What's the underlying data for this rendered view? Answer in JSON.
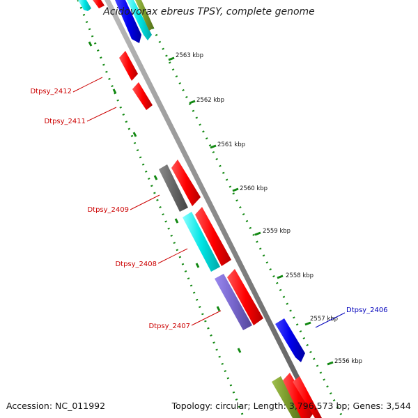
{
  "title": "Acidovorax ebreus TPSY, complete genome",
  "footer": {
    "accession": "Accession: NC_011992",
    "topology": "Topology: circular; Length: 3,796,573 bp; Genes: 3,544"
  },
  "colors": {
    "backbone": "#8c8c8c",
    "ticks": "#118811",
    "label_red": "#cc0000",
    "label_blue": "#0000bb"
  },
  "ticks": [
    {
      "label": "2563 kbp"
    },
    {
      "label": "2562 kbp"
    },
    {
      "label": "2561 kbp"
    },
    {
      "label": "2560 kbp"
    },
    {
      "label": "2559 kbp"
    },
    {
      "label": "2558 kbp"
    },
    {
      "label": "2557 kbp"
    },
    {
      "label": "2556 kbp"
    }
  ],
  "gene_labels": [
    {
      "text": "Dtpsy_2412",
      "color": "#cc0000"
    },
    {
      "text": "Dtpsy_2411",
      "color": "#cc0000"
    },
    {
      "text": "Dtpsy_2409",
      "color": "#cc0000"
    },
    {
      "text": "Dtpsy_2408",
      "color": "#cc0000"
    },
    {
      "text": "Dtpsy_2407",
      "color": "#cc0000"
    },
    {
      "text": "Dtpsy_2406",
      "color": "#0000bb"
    }
  ],
  "features": [
    {
      "name": "feature-red",
      "color": "#ff0000"
    },
    {
      "name": "feature-gray",
      "color": "#666666"
    },
    {
      "name": "feature-cyan",
      "color": "#00e5e5"
    },
    {
      "name": "feature-purple",
      "color": "#7766cc"
    },
    {
      "name": "feature-blue",
      "color": "#0000ee"
    },
    {
      "name": "feature-olive",
      "color": "#7a9a2a"
    }
  ]
}
